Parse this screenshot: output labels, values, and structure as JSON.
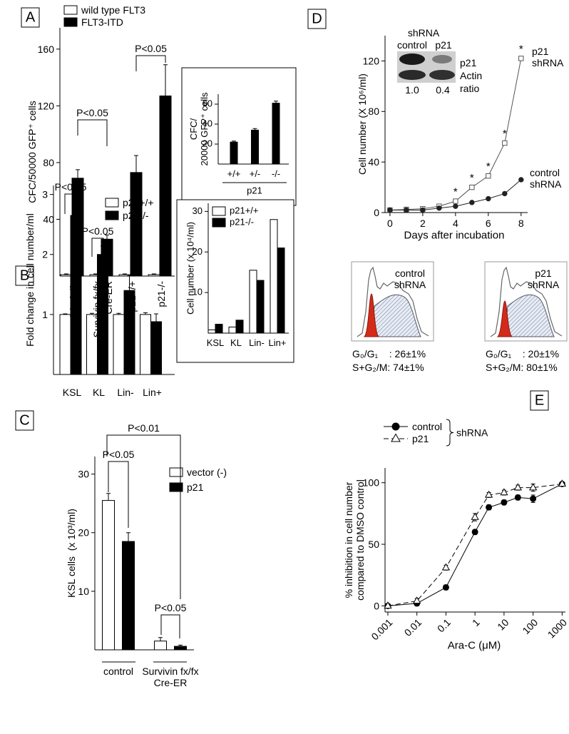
{
  "chart_data": [
    {
      "panel": "A",
      "type": "bar",
      "y_label": "CFC/50000 GFP⁺ cells",
      "categories": [
        "Survivin fx/fx",
        "Survivin fx/fx\nCre-ER",
        "p21+/+",
        "p21-/-"
      ],
      "series": [
        {
          "name": "wild type FLT3",
          "color": "#ffffff",
          "values": [
            1,
            1,
            1,
            1
          ],
          "errors": [
            0.5,
            0.5,
            0.5,
            0.5
          ]
        },
        {
          "name": "FLT3-ITD",
          "color": "#000000",
          "values": [
            69,
            26,
            73,
            127
          ],
          "errors": [
            6,
            3,
            12,
            22
          ]
        }
      ],
      "ylim": [
        0,
        175
      ],
      "yticks": [
        40,
        80,
        120,
        160
      ],
      "annotations": [
        "P<0.05",
        "P<0.05"
      ]
    },
    {
      "type": "bar",
      "y_label": "CFC/\n20000 GFP⁺ cells",
      "x_label": "p21",
      "categories": [
        "+/+",
        "+/-",
        "-/-"
      ],
      "values": [
        22,
        34,
        61
      ],
      "errors": [
        1,
        1.5,
        2
      ],
      "color": "#000000",
      "ylim": [
        0,
        70
      ],
      "yticks": [
        20,
        40,
        60
      ]
    },
    {
      "panel": "B",
      "type": "bar",
      "y_label": "Fold change in cell number/ml",
      "categories": [
        "KSL",
        "KL",
        "Lin-",
        "Lin+"
      ],
      "series": [
        {
          "name": "p21+/+",
          "color": "#ffffff",
          "values": [
            1,
            1,
            1,
            1
          ],
          "errors": [
            0.01,
            0.02,
            0.02,
            0.03
          ]
        },
        {
          "name": "p21-/-",
          "color": "#000000",
          "values": [
            2.65,
            2.0,
            1.4,
            0.88
          ],
          "errors": [
            0.02,
            0.14,
            0.25,
            0.13
          ]
        }
      ],
      "ylim": [
        0,
        3.15
      ],
      "yticks": [
        1,
        2,
        3
      ],
      "annotations": [
        "P<0.05",
        "P<0.05"
      ]
    },
    {
      "type": "bar",
      "y_label": "Cell number (x 10⁴/ml)",
      "categories": [
        "KSL",
        "KL",
        "Lin-",
        "Lin+"
      ],
      "series": [
        {
          "name": "p21+/+",
          "color": "#ffffff",
          "values": [
            0.8,
            1.5,
            15.5,
            28
          ]
        },
        {
          "name": "p21-/-",
          "color": "#000000",
          "values": [
            2.2,
            3.2,
            13,
            21
          ]
        }
      ],
      "ylim": [
        0,
        32
      ],
      "yticks": [
        10,
        20,
        30
      ]
    },
    {
      "panel": "C",
      "type": "bar",
      "y_label": "KSL cells  (x 10³/ml)",
      "categories": [
        "control",
        "Survivin fx/fx\nCre-ER"
      ],
      "series": [
        {
          "name": "vector (-)",
          "color": "#ffffff",
          "values": [
            25.5,
            1.5
          ],
          "errors": [
            1.2,
            0.6
          ]
        },
        {
          "name": "p21",
          "color": "#000000",
          "values": [
            18.5,
            0.6
          ],
          "errors": [
            1.5,
            0.2
          ]
        }
      ],
      "ylim": [
        0,
        33
      ],
      "yticks": [
        10,
        20,
        30
      ],
      "annotations": [
        "P<0.01",
        "P<0.05",
        "P<0.05"
      ]
    },
    {
      "panel": "D",
      "type": "line",
      "x_label": "Days after incubation",
      "y_label": "Cell number (X 10⁶/ml)",
      "x": [
        0,
        1,
        2,
        3,
        4,
        5,
        6,
        7,
        8
      ],
      "series": [
        {
          "name": "p21\nshRNA",
          "color": "#555555",
          "marker": "square",
          "values": [
            2,
            2.5,
            3,
            5,
            9,
            20,
            29,
            55,
            122
          ]
        },
        {
          "name": "control\nshRNA",
          "color": "#222222",
          "marker": "circle",
          "values": [
            2,
            2,
            2,
            3.5,
            5,
            8,
            11,
            15,
            26
          ]
        }
      ],
      "xlim": [
        -0.3,
        8.4
      ],
      "ylim": [
        0,
        140
      ],
      "xticks": [
        0,
        2,
        4,
        6,
        8
      ],
      "yticks": [
        0,
        40,
        80,
        120
      ],
      "significance_marks": [
        "*",
        "*",
        "*",
        "*",
        "*"
      ]
    },
    {
      "panel": "E",
      "type": "line",
      "x_scale": "log",
      "x_label": "Ara-C (μM)",
      "y_label": "% inhibition in cell number\ncompared to DMSO control",
      "legend_group": "shRNA",
      "x": [
        0.001,
        0.01,
        0.1,
        1,
        3,
        10,
        30,
        100,
        1000
      ],
      "series": [
        {
          "name": "control",
          "color": "#000000",
          "marker": "circle",
          "dashed": false,
          "values": [
            0,
            2,
            15,
            60,
            80,
            84,
            88,
            87,
            99
          ],
          "errors": [
            1,
            2,
            2,
            2,
            2,
            2,
            2,
            3,
            1
          ]
        },
        {
          "name": "p21",
          "color": "#000000",
          "marker": "triangle",
          "dashed": true,
          "values": [
            0,
            4,
            31,
            72,
            90,
            92,
            96,
            96,
            99
          ],
          "errors": [
            1,
            2,
            2,
            3,
            2,
            2,
            2,
            3,
            1
          ]
        }
      ],
      "xlim": [
        0.0008,
        1300
      ],
      "ylim": [
        -5,
        112
      ],
      "xticks": [
        0.001,
        0.01,
        0.1,
        1,
        10,
        100,
        1000
      ],
      "yticks": [
        0,
        50,
        100
      ]
    }
  ],
  "western_blot": {
    "title": "shRNA",
    "lanes": [
      "control",
      "p21"
    ],
    "rows": [
      "p21",
      "Actin"
    ],
    "ratio_label": "ratio",
    "ratios": [
      "1.0",
      "0.4"
    ]
  },
  "cell_cycle": [
    {
      "title": "control\nshRNA",
      "g0_g1": "G₀/G₁    : 26±1%",
      "s_g2_m": "S+G₂/M: 74±1%"
    },
    {
      "title": "p21\nshRNA",
      "g0_g1": "G₀/G₁    : 20±1%",
      "s_g2_m": "S+G₂/M: 80±1%"
    }
  ]
}
